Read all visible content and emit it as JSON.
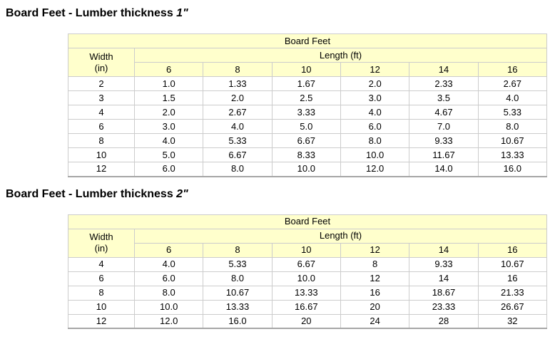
{
  "colors": {
    "header_bg": "#ffffcc",
    "border_outer": "#a6a6a6",
    "border_inner": "#cccccc",
    "text": "#000000"
  },
  "sections": [
    {
      "heading_text": "Board Feet - Lumber thickness ",
      "heading_thickness": "1\"",
      "table": {
        "title": "Board Feet",
        "width_label": "Width",
        "width_unit": "(in)",
        "length_label": "Length (ft)",
        "lengths": [
          "6",
          "8",
          "10",
          "12",
          "14",
          "16"
        ],
        "rows": [
          {
            "w": "2",
            "v": [
              "1.0",
              "1.33",
              "1.67",
              "2.0",
              "2.33",
              "2.67"
            ]
          },
          {
            "w": "3",
            "v": [
              "1.5",
              "2.0",
              "2.5",
              "3.0",
              "3.5",
              "4.0"
            ]
          },
          {
            "w": "4",
            "v": [
              "2.0",
              "2.67",
              "3.33",
              "4.0",
              "4.67",
              "5.33"
            ]
          },
          {
            "w": "6",
            "v": [
              "3.0",
              "4.0",
              "5.0",
              "6.0",
              "7.0",
              "8.0"
            ]
          },
          {
            "w": "8",
            "v": [
              "4.0",
              "5.33",
              "6.67",
              "8.0",
              "9.33",
              "10.67"
            ]
          },
          {
            "w": "10",
            "v": [
              "5.0",
              "6.67",
              "8.33",
              "10.0",
              "11.67",
              "13.33"
            ]
          },
          {
            "w": "12",
            "v": [
              "6.0",
              "8.0",
              "10.0",
              "12.0",
              "14.0",
              "16.0"
            ]
          }
        ]
      }
    },
    {
      "heading_text": "Board Feet - Lumber thickness ",
      "heading_thickness": "2\"",
      "table": {
        "title": "Board Feet",
        "width_label": "Width",
        "width_unit": "(in)",
        "length_label": "Length (ft)",
        "lengths": [
          "6",
          "8",
          "10",
          "12",
          "14",
          "16"
        ],
        "rows": [
          {
            "w": "4",
            "v": [
              "4.0",
              "5.33",
              "6.67",
              "8",
              "9.33",
              "10.67"
            ]
          },
          {
            "w": "6",
            "v": [
              "6.0",
              "8.0",
              "10.0",
              "12",
              "14",
              "16"
            ]
          },
          {
            "w": "8",
            "v": [
              "8.0",
              "10.67",
              "13.33",
              "16",
              "18.67",
              "21.33"
            ]
          },
          {
            "w": "10",
            "v": [
              "10.0",
              "13.33",
              "16.67",
              "20",
              "23.33",
              "26.67"
            ]
          },
          {
            "w": "12",
            "v": [
              "12.0",
              "16.0",
              "20",
              "24",
              "28",
              "32"
            ]
          }
        ]
      }
    }
  ]
}
